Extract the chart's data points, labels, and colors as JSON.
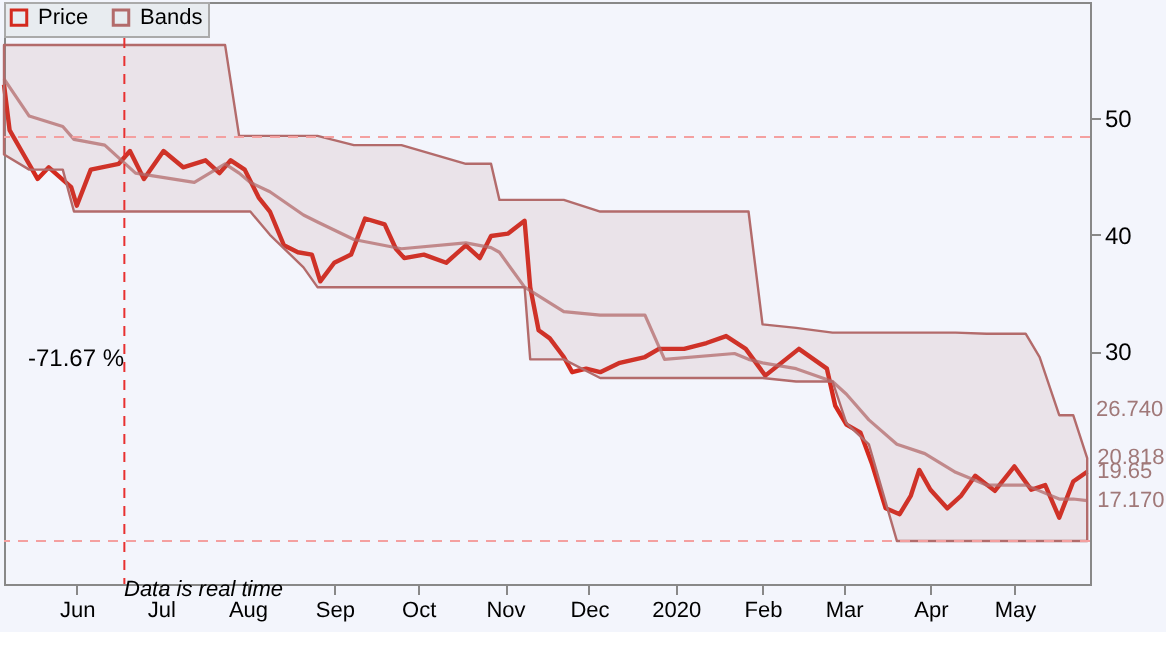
{
  "chart_data": {
    "type": "line",
    "legend": "top left",
    "grid": false,
    "xlim": [
      "2019-05-06",
      "2020-05-28"
    ],
    "ylim": [
      10,
      60
    ],
    "yticks": [
      30,
      40,
      50
    ],
    "xticks": [
      {
        "value": "2019-06-01",
        "label": "Jun"
      },
      {
        "value": "2019-07-01",
        "label": "Jul"
      },
      {
        "value": "2019-08-01",
        "label": "Aug"
      },
      {
        "value": "2019-09-01",
        "label": "Sep"
      },
      {
        "value": "2019-10-01",
        "label": "Oct"
      },
      {
        "value": "2019-11-01",
        "label": "Nov"
      },
      {
        "value": "2019-12-01",
        "label": "Dec"
      },
      {
        "value": "2020-01-01",
        "label": "2020"
      },
      {
        "value": "2020-02-01",
        "label": "Feb"
      },
      {
        "value": "2020-03-01",
        "label": "Mar"
      },
      {
        "value": "2020-04-01",
        "label": "Apr"
      },
      {
        "value": "2020-05-01",
        "label": "May"
      }
    ],
    "series": [
      {
        "name": "Price",
        "color": "#d42a1e",
        "x": [
          "2019-05-06",
          "2019-05-08",
          "2019-05-13",
          "2019-05-18",
          "2019-05-22",
          "2019-05-30",
          "2019-06-01",
          "2019-06-06",
          "2019-06-16",
          "2019-06-20",
          "2019-06-25",
          "2019-07-02",
          "2019-07-09",
          "2019-07-17",
          "2019-07-22",
          "2019-07-26",
          "2019-07-31",
          "2019-08-05",
          "2019-08-09",
          "2019-08-14",
          "2019-08-19",
          "2019-08-24",
          "2019-08-27",
          "2019-09-01",
          "2019-09-07",
          "2019-09-12",
          "2019-09-19",
          "2019-09-23",
          "2019-09-26",
          "2019-10-03",
          "2019-10-11",
          "2019-10-18",
          "2019-10-23",
          "2019-10-27",
          "2019-11-02",
          "2019-11-08",
          "2019-11-10",
          "2019-11-13",
          "2019-11-17",
          "2019-11-22",
          "2019-11-25",
          "2019-11-30",
          "2019-12-05",
          "2019-12-12",
          "2019-12-21",
          "2019-12-26",
          "2020-01-04",
          "2020-01-12",
          "2020-01-19",
          "2020-01-26",
          "2020-02-02",
          "2020-02-14",
          "2020-02-24",
          "2020-02-27",
          "2020-03-02",
          "2020-03-07",
          "2020-03-11",
          "2020-03-16",
          "2020-03-21",
          "2020-03-25",
          "2020-03-28",
          "2020-04-01",
          "2020-04-07",
          "2020-04-12",
          "2020-04-17",
          "2020-04-24",
          "2020-05-01",
          "2020-05-07",
          "2020-05-12",
          "2020-05-17",
          "2020-05-22",
          "2020-05-27"
        ],
        "values": [
          52.9,
          49.0,
          46.9,
          44.8,
          45.8,
          44.1,
          42.5,
          45.6,
          46.1,
          47.2,
          44.8,
          47.2,
          45.8,
          46.4,
          45.3,
          46.4,
          45.6,
          43.2,
          42.0,
          39.1,
          38.5,
          38.3,
          36.0,
          37.6,
          38.3,
          41.4,
          40.9,
          38.8,
          38.0,
          38.3,
          37.6,
          39.1,
          38.0,
          39.9,
          40.1,
          41.2,
          35.5,
          31.8,
          31.1,
          29.5,
          28.2,
          28.5,
          28.2,
          29.0,
          29.5,
          30.2,
          30.2,
          30.7,
          31.3,
          30.2,
          27.9,
          30.2,
          28.5,
          25.3,
          23.7,
          23.0,
          20.4,
          16.5,
          16.0,
          17.6,
          19.8,
          18.1,
          16.5,
          17.6,
          19.3,
          18.0,
          20.1,
          18.1,
          18.5,
          15.7,
          18.8,
          19.65
        ]
      },
      {
        "name": "Bands",
        "color": "#b36b6b",
        "x": [
          "2019-05-06",
          "2019-05-15",
          "2019-05-27",
          "2019-05-31",
          "2019-06-11",
          "2019-06-22",
          "2019-07-13",
          "2019-07-24",
          "2019-07-29",
          "2019-08-02",
          "2019-08-09",
          "2019-08-21",
          "2019-08-26",
          "2019-09-08",
          "2019-09-25",
          "2019-10-18",
          "2019-10-27",
          "2019-10-30",
          "2019-11-08",
          "2019-11-10",
          "2019-11-22",
          "2019-12-05",
          "2019-12-21",
          "2019-12-28",
          "2020-01-22",
          "2020-01-27",
          "2020-02-01",
          "2020-02-13",
          "2020-02-26",
          "2020-03-02",
          "2020-03-10",
          "2020-03-20",
          "2020-03-30",
          "2020-04-10",
          "2020-04-21",
          "2020-05-05",
          "2020-05-10",
          "2020-05-17",
          "2020-05-22",
          "2020-05-27"
        ],
        "values": [
          53.4,
          50.2,
          49.3,
          48.2,
          47.7,
          45.3,
          44.5,
          46.1,
          45.3,
          44.5,
          43.7,
          41.7,
          41.1,
          39.6,
          38.8,
          39.3,
          38.9,
          38.5,
          35.5,
          35.2,
          33.4,
          33.1,
          33.1,
          29.3,
          29.8,
          29.3,
          29.0,
          28.5,
          27.4,
          26.3,
          24.1,
          22.0,
          21.2,
          19.6,
          18.5,
          18.5,
          18.0,
          17.3,
          17.3,
          17.17
        ],
        "lower": [
          46.9,
          45.6,
          45.6,
          42.0,
          42.0,
          42.0,
          42.0,
          42.0,
          42.0,
          42.0,
          40.0,
          37.2,
          35.5,
          35.5,
          35.5,
          35.5,
          35.5,
          35.5,
          35.5,
          29.3,
          29.3,
          27.7,
          27.7,
          27.7,
          27.7,
          27.7,
          27.7,
          27.4,
          27.4,
          23.8,
          22.0,
          13.7,
          13.7,
          13.7,
          13.7,
          13.7,
          13.7,
          13.7,
          13.7,
          13.7
        ],
        "upper": [
          56.3,
          56.3,
          56.3,
          56.3,
          56.3,
          56.3,
          56.3,
          56.3,
          48.5,
          48.5,
          48.5,
          48.5,
          48.5,
          47.7,
          47.7,
          46.1,
          46.1,
          43.0,
          43.0,
          43.0,
          43.0,
          42.0,
          42.0,
          42.0,
          42.0,
          42.0,
          32.3,
          32.0,
          31.6,
          31.6,
          31.6,
          31.6,
          31.6,
          31.6,
          31.5,
          31.5,
          29.5,
          24.5,
          24.5,
          20.818
        ]
      }
    ],
    "ref_lines": [
      {
        "axis": "y",
        "value": 48.4,
        "color": "#f4a0a0",
        "line_style": "dashed"
      },
      {
        "axis": "y",
        "value": 13.7,
        "color": "#f4a0a0",
        "line_style": "dashed"
      },
      {
        "axis": "x",
        "value": "2019-06-18",
        "color": "#e83030",
        "line_style": "dashed"
      }
    ],
    "annotations": [
      "-71.67 %",
      "Data is real time",
      "26.740",
      {
        "text": "20.818",
        "x": "2020-05-27",
        "y": 20.818
      },
      {
        "text": "19.65",
        "x": "2020-05-27",
        "y": 19.65
      },
      {
        "text": "17.170",
        "x": "2020-05-27",
        "y": 17.17
      }
    ]
  }
}
